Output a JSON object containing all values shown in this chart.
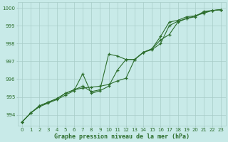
{
  "title": "Graphe pression niveau de la mer (hPa)",
  "x": [
    0,
    1,
    2,
    3,
    4,
    5,
    6,
    7,
    8,
    9,
    10,
    11,
    12,
    13,
    14,
    15,
    16,
    17,
    18,
    19,
    20,
    21,
    22,
    23
  ],
  "line1": [
    993.6,
    994.1,
    994.5,
    994.7,
    994.9,
    995.2,
    995.4,
    995.5,
    995.55,
    995.6,
    995.7,
    995.9,
    996.05,
    997.1,
    997.5,
    997.7,
    998.2,
    998.5,
    999.2,
    999.4,
    999.55,
    999.7,
    999.85,
    999.9
  ],
  "line2": [
    993.6,
    994.1,
    994.5,
    994.7,
    994.9,
    995.2,
    995.4,
    995.6,
    995.3,
    995.4,
    997.4,
    997.3,
    997.1,
    997.1,
    997.5,
    997.7,
    998.4,
    999.2,
    999.3,
    999.5,
    999.55,
    999.75,
    999.85,
    999.9
  ],
  "line3": [
    993.6,
    994.1,
    994.45,
    994.65,
    994.85,
    995.1,
    995.35,
    996.3,
    995.2,
    995.35,
    995.6,
    996.5,
    997.1,
    997.1,
    997.5,
    997.65,
    998.0,
    999.0,
    999.25,
    999.4,
    999.5,
    999.8,
    999.85,
    999.9
  ],
  "line_color": "#2d6e2d",
  "bg_color": "#c8eae8",
  "grid_color": "#a8ccc8",
  "text_color": "#2d6e2d",
  "ylim": [
    993.4,
    1000.3
  ],
  "yticks": [
    994,
    995,
    996,
    997,
    998,
    999,
    1000
  ],
  "xlim": [
    -0.5,
    23.5
  ],
  "xticks": [
    0,
    1,
    2,
    3,
    4,
    5,
    6,
    7,
    8,
    9,
    10,
    11,
    12,
    13,
    14,
    15,
    16,
    17,
    18,
    19,
    20,
    21,
    22,
    23
  ],
  "marker": "+"
}
